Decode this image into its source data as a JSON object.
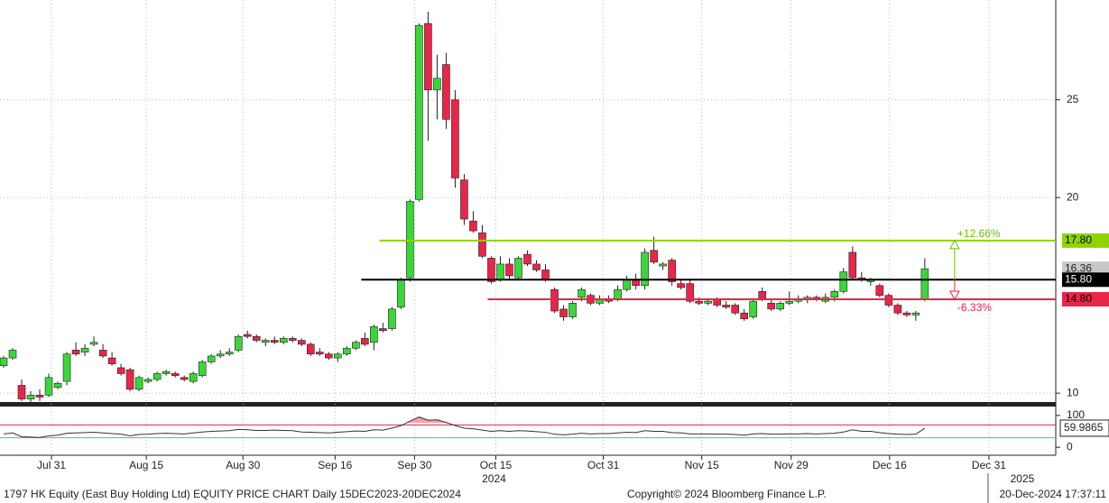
{
  "chart_data": [
    {
      "type": "candlestick",
      "up_color": "#3bd63b",
      "down_color": "#e8264a",
      "open": [
        11.4,
        11.8,
        10.4,
        9.7,
        9.9,
        9.9,
        10.3,
        10.6,
        12.2,
        12.1,
        12.5,
        12.2,
        11.8,
        11.3,
        11.2,
        10.2,
        10.6,
        10.7,
        11.0,
        11.0,
        10.8,
        10.6,
        10.9,
        11.6,
        11.9,
        12.0,
        12.2,
        13.0,
        12.9,
        12.6,
        12.7,
        12.6,
        12.8,
        12.7,
        12.5,
        12.1,
        12.0,
        11.8,
        12.0,
        12.3,
        12.8,
        12.6,
        13.3,
        13.3,
        14.4,
        15.9,
        19.9,
        28.9,
        25.5,
        26.8,
        25.0,
        20.9,
        18.8,
        18.2,
        16.9,
        15.8,
        16.6,
        15.9,
        17.1,
        16.6,
        16.3,
        15.3,
        14.3,
        13.9,
        14.9,
        15.0,
        14.6,
        14.8,
        14.8,
        15.3,
        15.8,
        15.5,
        17.3,
        16.5,
        16.8,
        15.6,
        15.6,
        14.7,
        14.6,
        14.8,
        14.5,
        14.5,
        14.1,
        13.9,
        15.2,
        14.6,
        14.3,
        14.6,
        14.7,
        14.8,
        14.9,
        14.7,
        14.9,
        15.2,
        17.2,
        15.9,
        15.7,
        15.5,
        15.0,
        14.5,
        14.1,
        14.0,
        14.8
      ],
      "high": [
        11.9,
        12.3,
        10.7,
        10.1,
        10.2,
        11.0,
        10.6,
        12.1,
        12.6,
        12.5,
        12.9,
        12.5,
        12.1,
        11.5,
        11.3,
        10.9,
        10.8,
        11.1,
        11.2,
        11.1,
        10.9,
        11.1,
        11.7,
        12.0,
        12.2,
        12.3,
        13.0,
        13.2,
        13.0,
        12.8,
        12.9,
        12.9,
        12.9,
        12.8,
        12.6,
        12.3,
        12.1,
        12.1,
        12.4,
        12.7,
        13.1,
        13.5,
        13.6,
        14.4,
        15.9,
        19.9,
        28.9,
        29.5,
        27.3,
        27.4,
        25.5,
        21.2,
        19.3,
        18.6,
        17.0,
        17.0,
        16.9,
        17.0,
        17.3,
        16.8,
        16.6,
        15.4,
        14.5,
        14.7,
        15.4,
        15.1,
        15.0,
        15.0,
        15.5,
        16.0,
        16.1,
        17.4,
        18.0,
        16.7,
        16.9,
        15.8,
        15.8,
        14.9,
        14.8,
        14.9,
        14.7,
        14.6,
        14.3,
        14.8,
        15.4,
        14.8,
        14.7,
        15.2,
        15.0,
        15.0,
        15.0,
        15.1,
        15.3,
        16.4,
        17.5,
        16.2,
        15.9,
        15.6,
        15.1,
        14.6,
        14.2,
        14.2,
        16.9
      ],
      "low": [
        11.3,
        11.7,
        9.6,
        9.5,
        9.6,
        9.8,
        10.2,
        10.4,
        11.9,
        11.9,
        12.4,
        11.8,
        11.4,
        10.9,
        10.1,
        10.1,
        10.5,
        10.6,
        10.9,
        10.8,
        10.6,
        10.5,
        10.8,
        11.5,
        11.8,
        11.9,
        12.1,
        12.8,
        12.6,
        12.4,
        12.5,
        12.5,
        12.6,
        12.4,
        11.9,
        11.9,
        11.7,
        11.6,
        11.9,
        12.2,
        12.4,
        12.2,
        13.1,
        13.2,
        14.3,
        15.7,
        19.8,
        22.9,
        24.0,
        23.5,
        20.5,
        18.6,
        18.2,
        16.9,
        15.6,
        15.7,
        15.8,
        15.8,
        16.5,
        16.2,
        15.7,
        14.1,
        13.7,
        13.8,
        14.7,
        14.5,
        14.5,
        14.6,
        14.7,
        15.2,
        15.3,
        15.3,
        16.6,
        16.3,
        15.5,
        15.3,
        14.6,
        14.5,
        14.5,
        14.4,
        14.3,
        14.0,
        13.7,
        13.8,
        14.7,
        14.2,
        14.2,
        14.5,
        14.6,
        14.6,
        14.7,
        14.6,
        14.7,
        15.1,
        15.8,
        15.7,
        15.5,
        14.9,
        14.4,
        14.0,
        13.9,
        13.7,
        14.7
      ],
      "close": [
        11.8,
        12.2,
        9.7,
        9.9,
        9.8,
        10.8,
        10.5,
        12.0,
        12.0,
        12.3,
        12.6,
        11.9,
        11.5,
        11.0,
        10.2,
        10.8,
        10.7,
        11.0,
        11.1,
        10.9,
        10.7,
        11.0,
        11.6,
        11.9,
        12.0,
        12.1,
        12.9,
        12.9,
        12.7,
        12.7,
        12.6,
        12.8,
        12.7,
        12.5,
        12.0,
        12.0,
        11.8,
        12.0,
        12.3,
        12.6,
        12.5,
        13.4,
        13.2,
        14.3,
        15.8,
        19.8,
        28.8,
        25.5,
        26.1,
        24.0,
        21.0,
        18.9,
        18.3,
        17.0,
        15.7,
        16.6,
        16.0,
        16.9,
        16.6,
        16.3,
        15.8,
        14.2,
        13.9,
        14.6,
        15.3,
        14.6,
        14.8,
        14.7,
        15.3,
        15.8,
        15.5,
        17.2,
        16.7,
        16.6,
        15.7,
        15.4,
        14.7,
        14.6,
        14.7,
        14.5,
        14.4,
        14.1,
        13.8,
        14.7,
        14.8,
        14.3,
        14.6,
        14.7,
        14.8,
        14.9,
        14.8,
        14.9,
        15.2,
        16.2,
        15.9,
        15.8,
        15.8,
        15.0,
        14.5,
        14.1,
        14.0,
        14.1,
        16.36
      ],
      "xlim": [
        -0.4,
        116.5
      ],
      "ylim": [
        9.5,
        30.1
      ],
      "yticks": [
        10,
        20,
        25
      ],
      "grid": true,
      "xticks": [
        {
          "value": 5.3,
          "label": "Jul 31"
        },
        {
          "value": 15.8,
          "label": "Aug 15"
        },
        {
          "value": 26.5,
          "label": "Aug 30"
        },
        {
          "value": 36.7,
          "label": "Sep 16"
        },
        {
          "value": 45.5,
          "label": "Sep 30"
        },
        {
          "value": 54.5,
          "label": "Oct 15"
        },
        {
          "value": 66.4,
          "label": "Oct 31"
        },
        {
          "value": 77.3,
          "label": "Nov 15"
        },
        {
          "value": 87.2,
          "label": "Nov 29"
        },
        {
          "value": 98.1,
          "label": "Dec 16"
        },
        {
          "value": 109.1,
          "label": "Dec 31"
        }
      ],
      "year_labels": [
        {
          "value": 54.3,
          "label": "2024"
        },
        {
          "value": 112.8,
          "label": "2025"
        }
      ],
      "levels": [
        {
          "value": 17.8,
          "label": "17.80",
          "color": "#8fd400",
          "text_color": "#000000",
          "from": 41.6
        },
        {
          "value": 15.8,
          "label": "15.80",
          "color": "#000000",
          "text_color": "#ffffff",
          "from": 39.6
        },
        {
          "value": 14.8,
          "label": "14.80",
          "color": "#e8264a",
          "text_color": "#000000",
          "from": 53.6
        }
      ],
      "last_price": {
        "value": 16.36,
        "label": "16.36"
      },
      "annotations": [
        {
          "text": "+12.66%",
          "color": "#6cbf00"
        },
        {
          "text": "-6.33%",
          "color": "#e8264a"
        }
      ]
    },
    {
      "type": "line",
      "name": "RSI",
      "color": "#333333",
      "values": [
        42,
        45,
        33,
        32,
        31,
        36,
        38,
        44,
        45,
        46,
        47,
        45,
        43,
        41,
        36,
        40,
        41,
        43,
        44,
        43,
        42,
        45,
        48,
        50,
        51,
        52,
        56,
        55,
        53,
        53,
        54,
        53,
        52,
        48,
        47,
        46,
        45,
        47,
        49,
        51,
        50,
        55,
        54,
        60,
        68,
        82,
        95,
        85,
        86,
        78,
        68,
        60,
        58,
        54,
        50,
        52,
        50,
        52,
        51,
        49,
        47,
        41,
        39,
        41,
        44,
        42,
        43,
        43,
        45,
        47,
        46,
        52,
        50,
        50,
        46,
        45,
        42,
        42,
        42,
        41,
        41,
        40,
        38,
        42,
        43,
        41,
        41,
        42,
        42,
        43,
        42,
        43,
        44,
        48,
        55,
        50,
        50,
        46,
        43,
        41,
        40,
        41,
        59.9865
      ],
      "last_label": "59.9865",
      "ylim": [
        -25,
        125
      ],
      "yticks": [
        0,
        100
      ],
      "levels": [
        {
          "value": 70,
          "color": "#e8264a"
        },
        {
          "value": 30,
          "color": "#3bd63b"
        }
      ]
    }
  ],
  "footer": {
    "left": "1797 HK Equity (East Buy Holding Ltd) EQUITY PRICE CHART  Daily 15DEC2023-20DEC2024",
    "center": "Copyright© 2024 Bloomberg Finance L.P.",
    "right": "20-Dec-2024 17:37:11"
  }
}
